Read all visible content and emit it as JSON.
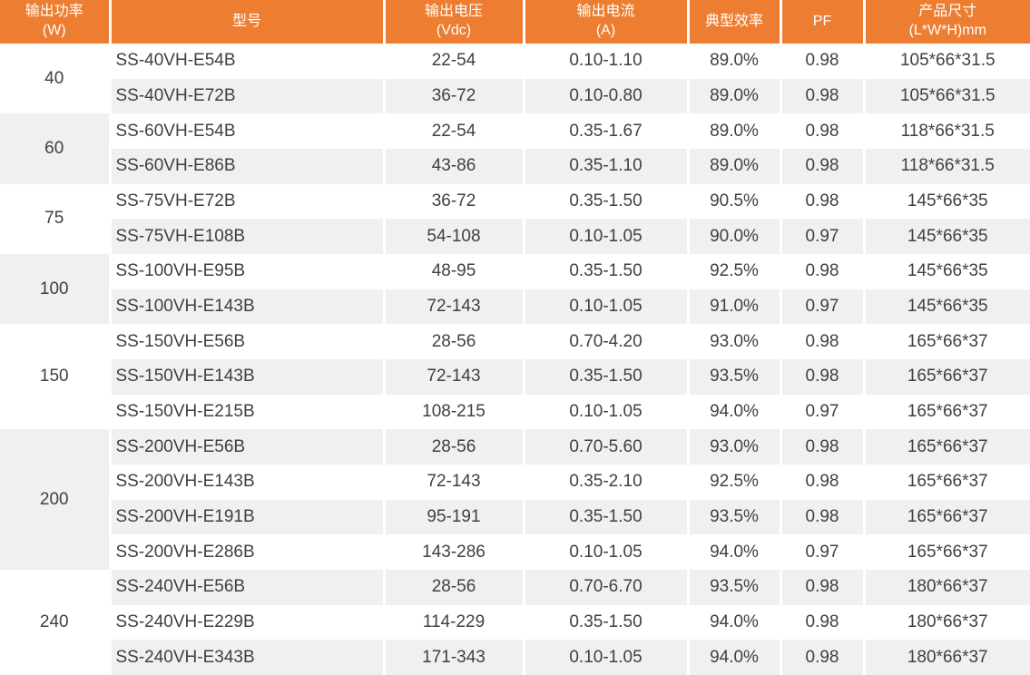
{
  "colors": {
    "header_bg": "#ED7D31",
    "header_text": "#FFFFFF",
    "stripe": "#F0F0F0",
    "body_text": "#404040"
  },
  "table": {
    "columns": [
      {
        "key": "power",
        "label": "输出功率\n(W)"
      },
      {
        "key": "model",
        "label": "型号"
      },
      {
        "key": "voltage",
        "label": "输出电压\n(Vdc)"
      },
      {
        "key": "current",
        "label": "输出电流\n(A)"
      },
      {
        "key": "efficiency",
        "label": "典型效率"
      },
      {
        "key": "pf",
        "label": "PF"
      },
      {
        "key": "size",
        "label": "产品尺寸\n(L*W*H)mm"
      }
    ],
    "groups": [
      {
        "power": "40",
        "rows": [
          {
            "model": "SS-40VH-E54B",
            "voltage": "22-54",
            "current": "0.10-1.10",
            "efficiency": "89.0%",
            "pf": "0.98",
            "size": "105*66*31.5"
          },
          {
            "model": "SS-40VH-E72B",
            "voltage": "36-72",
            "current": "0.10-0.80",
            "efficiency": "89.0%",
            "pf": "0.98",
            "size": "105*66*31.5"
          }
        ]
      },
      {
        "power": "60",
        "rows": [
          {
            "model": "SS-60VH-E54B",
            "voltage": "22-54",
            "current": "0.35-1.67",
            "efficiency": "89.0%",
            "pf": "0.98",
            "size": "118*66*31.5"
          },
          {
            "model": "SS-60VH-E86B",
            "voltage": "43-86",
            "current": "0.35-1.10",
            "efficiency": "89.0%",
            "pf": "0.98",
            "size": "118*66*31.5"
          }
        ]
      },
      {
        "power": "75",
        "rows": [
          {
            "model": "SS-75VH-E72B",
            "voltage": "36-72",
            "current": "0.35-1.50",
            "efficiency": "90.5%",
            "pf": "0.98",
            "size": "145*66*35"
          },
          {
            "model": "SS-75VH-E108B",
            "voltage": "54-108",
            "current": "0.10-1.05",
            "efficiency": "90.0%",
            "pf": "0.97",
            "size": "145*66*35"
          }
        ]
      },
      {
        "power": "100",
        "rows": [
          {
            "model": "SS-100VH-E95B",
            "voltage": "48-95",
            "current": "0.35-1.50",
            "efficiency": "92.5%",
            "pf": "0.98",
            "size": "145*66*35"
          },
          {
            "model": "SS-100VH-E143B",
            "voltage": "72-143",
            "current": "0.10-1.05",
            "efficiency": "91.0%",
            "pf": "0.97",
            "size": "145*66*35"
          }
        ]
      },
      {
        "power": "150",
        "rows": [
          {
            "model": "SS-150VH-E56B",
            "voltage": "28-56",
            "current": "0.70-4.20",
            "efficiency": "93.0%",
            "pf": "0.98",
            "size": "165*66*37"
          },
          {
            "model": "SS-150VH-E143B",
            "voltage": "72-143",
            "current": "0.35-1.50",
            "efficiency": "93.5%",
            "pf": "0.98",
            "size": "165*66*37"
          },
          {
            "model": "SS-150VH-E215B",
            "voltage": "108-215",
            "current": "0.10-1.05",
            "efficiency": "94.0%",
            "pf": "0.97",
            "size": "165*66*37"
          }
        ]
      },
      {
        "power": "200",
        "rows": [
          {
            "model": "SS-200VH-E56B",
            "voltage": "28-56",
            "current": "0.70-5.60",
            "efficiency": "93.0%",
            "pf": "0.98",
            "size": "165*66*37"
          },
          {
            "model": "SS-200VH-E143B",
            "voltage": "72-143",
            "current": "0.35-2.10",
            "efficiency": "92.5%",
            "pf": "0.98",
            "size": "165*66*37"
          },
          {
            "model": "SS-200VH-E191B",
            "voltage": "95-191",
            "current": "0.35-1.50",
            "efficiency": "93.5%",
            "pf": "0.98",
            "size": "165*66*37"
          },
          {
            "model": "SS-200VH-E286B",
            "voltage": "143-286",
            "current": "0.10-1.05",
            "efficiency": "94.0%",
            "pf": "0.97",
            "size": "165*66*37"
          }
        ]
      },
      {
        "power": "240",
        "rows": [
          {
            "model": "SS-240VH-E56B",
            "voltage": "28-56",
            "current": "0.70-6.70",
            "efficiency": "93.5%",
            "pf": "0.98",
            "size": "180*66*37"
          },
          {
            "model": "SS-240VH-E229B",
            "voltage": "114-229",
            "current": "0.35-1.50",
            "efficiency": "94.0%",
            "pf": "0.98",
            "size": "180*66*37"
          },
          {
            "model": "SS-240VH-E343B",
            "voltage": "171-343",
            "current": "0.10-1.05",
            "efficiency": "94.0%",
            "pf": "0.98",
            "size": "180*66*37"
          }
        ]
      }
    ]
  }
}
